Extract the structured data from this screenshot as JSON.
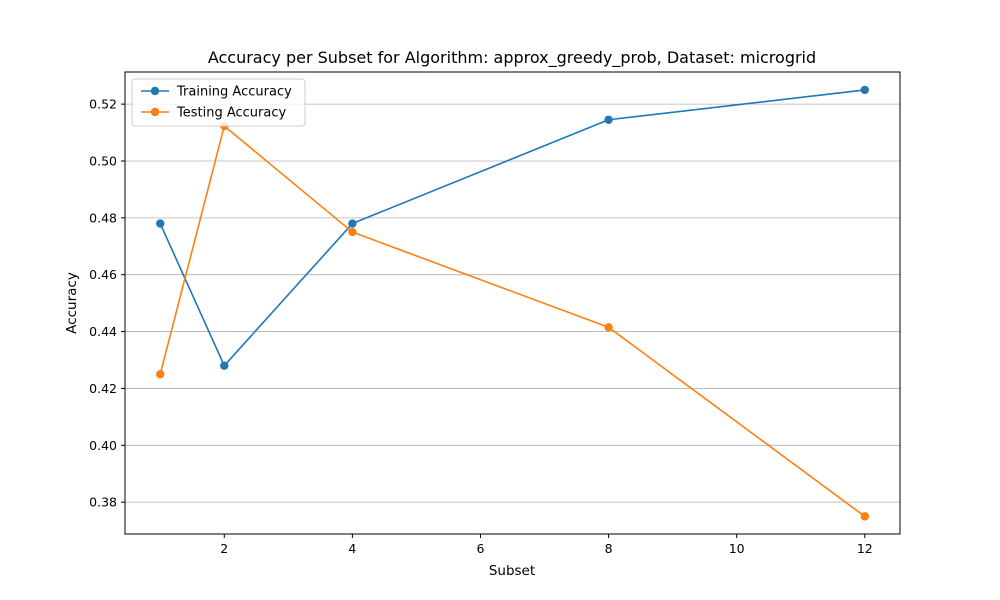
{
  "chart_data": {
    "type": "line",
    "title": "Accuracy per Subset for Algorithm: approx_greedy_prob, Dataset: microgrid",
    "xlabel": "Subset",
    "ylabel": "Accuracy",
    "xlim": [
      0.45,
      12.55
    ],
    "ylim": [
      0.3688,
      0.5313
    ],
    "xticks": [
      2,
      4,
      6,
      8,
      10,
      12
    ],
    "yticks": [
      0.38,
      0.4,
      0.42,
      0.44,
      0.46,
      0.48,
      0.5,
      0.52
    ],
    "ytick_labels": [
      "0.38",
      "0.40",
      "0.42",
      "0.44",
      "0.46",
      "0.48",
      "0.50",
      "0.52"
    ],
    "grid": "horizontal",
    "legend": "top-left",
    "x": [
      1,
      2,
      4,
      8,
      12
    ],
    "series": [
      {
        "name": "Training Accuracy",
        "color": "#1f77b4",
        "values": [
          0.478,
          0.428,
          0.478,
          0.5145,
          0.525
        ]
      },
      {
        "name": "Testing Accuracy",
        "color": "#ff7f0e",
        "values": [
          0.425,
          0.5123,
          0.475,
          0.4415,
          0.375
        ]
      }
    ]
  }
}
